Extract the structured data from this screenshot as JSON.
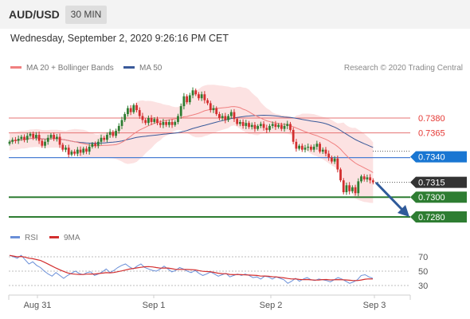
{
  "header": {
    "pair": "AUD/USD",
    "timeframe": "30 MIN"
  },
  "datetime": "Wednesday, September 2, 2020 9:26:16 PM CET",
  "credit": "Research © 2020 Trading Central",
  "colors": {
    "up": "#2e7d32",
    "down": "#d32f2f",
    "ma20": "#f08080",
    "ma50": "#3a5a9a",
    "resistance": "#e57373",
    "support": "#4a7fd4",
    "target": "#2e7d32",
    "arrow": "#2f5a9a",
    "rsi": "#6a8fd8",
    "rsi_ma": "#d32f2f"
  },
  "chart_data": [
    {
      "type": "candlestick",
      "legend": [
        {
          "name": "MA 20 + Bollinger Bands",
          "color": "#f08080"
        },
        {
          "name": "MA 50",
          "color": "#3a5a9a"
        }
      ],
      "x_ticks": [
        "Aug 31",
        "Sep 1",
        "Sep 2",
        "Sep 3"
      ],
      "ylim": [
        0.7275,
        0.7425
      ],
      "price_levels": [
        {
          "value": 0.738,
          "label": "0.7380",
          "kind": "resistance"
        },
        {
          "value": 0.7365,
          "label": "0.7365",
          "kind": "resistance"
        },
        {
          "value": 0.734,
          "label": "0.7340",
          "kind": "pivot"
        },
        {
          "value": 0.7315,
          "label": "0.7315",
          "kind": "last"
        },
        {
          "value": 0.73,
          "label": "0.7300",
          "kind": "target"
        },
        {
          "value": 0.728,
          "label": "0.7280",
          "kind": "target"
        }
      ],
      "closes": [
        0.7356,
        0.7358,
        0.7357,
        0.7359,
        0.7361,
        0.7358,
        0.7362,
        0.7364,
        0.736,
        0.7363,
        0.7357,
        0.7352,
        0.7356,
        0.736,
        0.7363,
        0.7359,
        0.7361,
        0.7353,
        0.7348,
        0.735,
        0.7343,
        0.7346,
        0.7344,
        0.7348,
        0.7345,
        0.7349,
        0.7346,
        0.7351,
        0.7354,
        0.7352,
        0.7356,
        0.736,
        0.7358,
        0.7363,
        0.7366,
        0.7362,
        0.7367,
        0.7372,
        0.7378,
        0.7384,
        0.739,
        0.7386,
        0.7393,
        0.7388,
        0.7382,
        0.7378,
        0.7375,
        0.738,
        0.7376,
        0.7379,
        0.7375,
        0.7373,
        0.7376,
        0.7373,
        0.7376,
        0.7373,
        0.7376,
        0.7382,
        0.7392,
        0.7402,
        0.7396,
        0.7403,
        0.7408,
        0.7404,
        0.74,
        0.7404,
        0.7398,
        0.7395,
        0.7388,
        0.739,
        0.7384,
        0.738,
        0.7382,
        0.7378,
        0.7382,
        0.7386,
        0.7379,
        0.7374,
        0.7376,
        0.7372,
        0.7375,
        0.7371,
        0.7373,
        0.7369,
        0.7372,
        0.7374,
        0.737,
        0.7368,
        0.7372,
        0.7374,
        0.7371,
        0.7373,
        0.7369,
        0.7372,
        0.7374,
        0.7368,
        0.7356,
        0.7349,
        0.7352,
        0.7348,
        0.735,
        0.7351,
        0.7348,
        0.7351,
        0.7354,
        0.7346,
        0.7348,
        0.7344,
        0.734,
        0.7336,
        0.7339,
        0.7328,
        0.7317,
        0.7305,
        0.7312,
        0.7306,
        0.731,
        0.7304,
        0.7316,
        0.7321,
        0.7318,
        0.732,
        0.7317,
        0.7315
      ]
    },
    {
      "type": "line",
      "title": "",
      "legend": [
        {
          "name": "RSI",
          "color": "#6a8fd8"
        },
        {
          "name": "9MA",
          "color": "#d32f2f"
        }
      ],
      "y_ticks": [
        70,
        50,
        30
      ],
      "ylim": [
        20,
        80
      ],
      "rsi_values": [
        72,
        70,
        68,
        72,
        66,
        60,
        63,
        58,
        55,
        50,
        46,
        43,
        48,
        44,
        40,
        44,
        47,
        50,
        47,
        45,
        48,
        49,
        44,
        46,
        49,
        53,
        48,
        51,
        55,
        58,
        60,
        56,
        53,
        57,
        60,
        55,
        53,
        51,
        50,
        53,
        57,
        53,
        49,
        51,
        55,
        53,
        50,
        48,
        51,
        47,
        44,
        46,
        49,
        46,
        43,
        45,
        47,
        42,
        44,
        46,
        44,
        46,
        44,
        41,
        42,
        39,
        43,
        42,
        39,
        42,
        40,
        38,
        33,
        36,
        40,
        36,
        39,
        41,
        38,
        37,
        39,
        38,
        37,
        35,
        38,
        41,
        39,
        36,
        33,
        35,
        38,
        44,
        45,
        42,
        40
      ]
    }
  ]
}
